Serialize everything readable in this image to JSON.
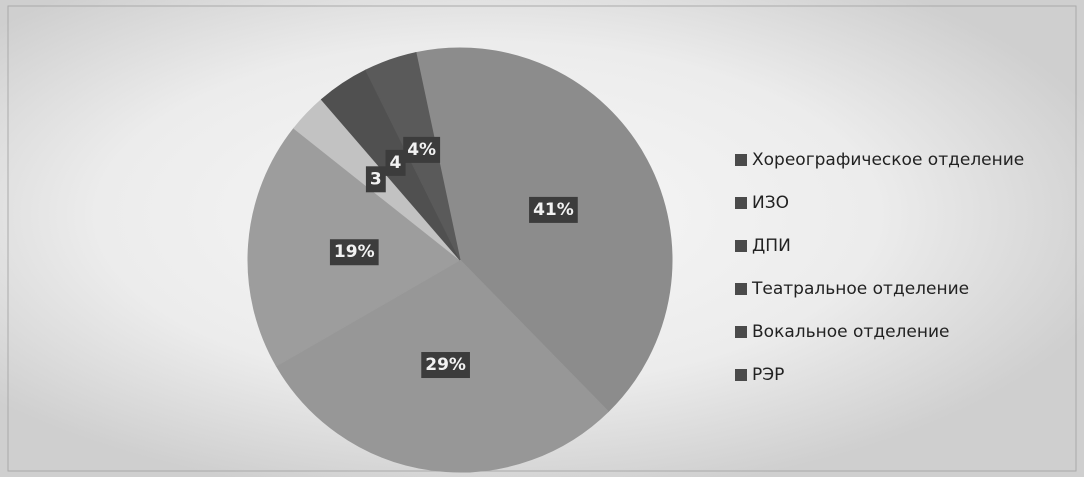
{
  "chart_data": {
    "type": "pie",
    "categories": [
      "Хореографическое отделение",
      "ИЗО",
      "ДПИ",
      "Театральное отделение",
      "Вокальное отделение",
      "РЭР"
    ],
    "values": [
      41,
      29,
      19,
      3,
      4,
      4
    ],
    "value_labels": [
      "41%",
      "29%",
      "19%",
      "3",
      "4",
      "4%"
    ],
    "colors": [
      "#8c8c8c",
      "#979797",
      "#9d9d9d",
      "#c2c2c2",
      "#505050",
      "#5a5a5a"
    ],
    "legend_marker_color": "#4a4a4a",
    "legend": "right"
  }
}
